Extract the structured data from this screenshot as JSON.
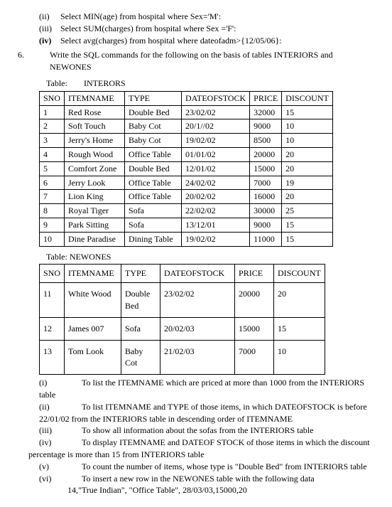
{
  "pre": {
    "ii": {
      "roman": "(ii)",
      "text": "Select MIN(age) from hospital where Sex='M':"
    },
    "iii": {
      "roman": "(iii)",
      "text": "Select SUM(charges) from hospital where Sex ='F':"
    },
    "iv": {
      "roman": "(iv)",
      "text": "Select avg(charges) from hospital where dateofadm>{12/05/06}:"
    }
  },
  "q6": {
    "num": "6.",
    "text": "Write the SQL commands for the following on the basis of tables INTERIORS and NEWONES"
  },
  "table1": {
    "label_prefix": "Table:",
    "label_name": "INTERORS",
    "headers": [
      "SNO",
      "ITEMNAME",
      "TYPE",
      "DATEOFSTOCK",
      "PRICE",
      "DISCOUNT"
    ],
    "rows": [
      [
        "1",
        "Red Rose",
        "Double Bed",
        "23/02/02",
        "32000",
        "15"
      ],
      [
        "2",
        "Soft Touch",
        "Baby Cot",
        "20/1//02",
        "9000",
        "10"
      ],
      [
        "3",
        "Jerry's Home",
        "Baby Cot",
        "19/02/02",
        "8500",
        "10"
      ],
      [
        "4",
        "Rough Wood",
        "Office Table",
        "01/01/02",
        "20000",
        "20"
      ],
      [
        "5",
        "Comfort Zone",
        "Double Bed",
        "12/01/02",
        "15000",
        "20"
      ],
      [
        "6",
        "Jerry Look",
        "Office Table",
        "24/02/02",
        "7000",
        "19"
      ],
      [
        "7",
        "Lion King",
        "Office Table",
        "20/02/02",
        "16000",
        "20"
      ],
      [
        "8",
        "Royal Tiger",
        "Sofa",
        "22/02/02",
        "30000",
        "25"
      ],
      [
        "9",
        "Park Sitting",
        "Sofa",
        "13/12/01",
        "9000",
        "15"
      ],
      [
        "10",
        "Dine Paradise",
        "Dining Table",
        "19/02/02",
        "11000",
        "15"
      ]
    ]
  },
  "table2": {
    "label": "Table: NEWONES",
    "headers": [
      "SNO",
      "ITEMNAME",
      "TYPE",
      "DATEOFSTOCK",
      "PRICE",
      "DISCOUNT"
    ],
    "rows": [
      [
        "11",
        "White Wood",
        "Double Bed",
        "23/02/02",
        "20000",
        "20"
      ],
      [
        "12",
        "James 007",
        "Sofa",
        "20/02/03",
        "15000",
        "15"
      ],
      [
        "13",
        "Tom Look",
        "Baby Cot",
        "21/02/03",
        "7000",
        "10"
      ]
    ]
  },
  "subs": {
    "i": {
      "roman": "(i)",
      "text": "To list the ITEMNAME which are priced at more than 1000 from the INTERIORS",
      "cont": "table"
    },
    "ii": {
      "roman": "(ii)",
      "text": "To list ITEMNAME and TYPE of those items, in which DATEOFSTOCK is before",
      "cont": "22/01/02 from the INTERIORS table in descending  order of ITEMNAME"
    },
    "iii": {
      "roman": "(iii)",
      "text": "To show all information about the sofas from the INTERIORS table"
    },
    "iv": {
      "roman": "(iv)",
      "text": "To display ITEMNAME and DATEOF STOCK of those  items in which the discount",
      "cont": "percentage is more than 15 from INTERIORS table"
    },
    "v": {
      "roman": "(v)",
      "text": "To count the number of items, whose type is \"Double Bed\" from INTERIORS table"
    },
    "vi": {
      "roman": "(vi)",
      "text": "To insert a new row in the NEWONES table with the following data"
    },
    "last": "14,\"True Indian\", \"Office Table\", 28/03/03,15000,20"
  }
}
